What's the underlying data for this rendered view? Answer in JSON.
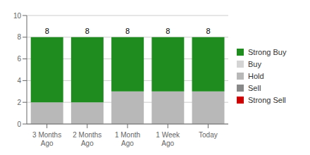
{
  "chart_data": {
    "type": "bar",
    "stacked": true,
    "categories": [
      "3 Months\nAgo",
      "2 Months\nAgo",
      "1 Month\nAgo",
      "1 Week\nAgo",
      "Today"
    ],
    "series": [
      {
        "name": "Strong Sell",
        "color": "#cc0000",
        "values": [
          0,
          0,
          0,
          0,
          0
        ]
      },
      {
        "name": "Sell",
        "color": "#888888",
        "values": [
          0,
          0,
          0,
          0,
          0
        ]
      },
      {
        "name": "Hold",
        "color": "#b8b8b8",
        "values": [
          2,
          2,
          3,
          3,
          3
        ]
      },
      {
        "name": "Buy",
        "color": "#d4d4d4",
        "values": [
          0,
          0,
          0,
          0,
          0
        ]
      },
      {
        "name": "Strong Buy",
        "color": "#1e8c1e",
        "values": [
          6,
          6,
          5,
          5,
          5
        ]
      }
    ],
    "totals": [
      8,
      8,
      8,
      8,
      8
    ],
    "ylim": [
      0,
      10
    ],
    "yticks": [
      0,
      2,
      4,
      6,
      8,
      10
    ],
    "grid": true,
    "legend": "right"
  }
}
